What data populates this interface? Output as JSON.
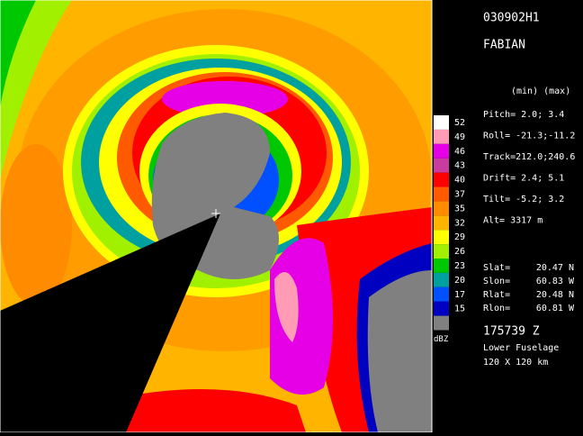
{
  "header": {
    "flight": "030902H1",
    "storm": "FABIAN"
  },
  "stats": {
    "heading": "(min) (max)",
    "rows": [
      "Pitch=  2.0;  3.4",
      "Roll= -21.3;-11.2",
      "Track=212.0;240.6",
      "Drift=  2.4;  5.1",
      "Tilt=  -5.2;  3.2",
      "Alt=  3317 m"
    ]
  },
  "position": {
    "rows": [
      {
        "label": "Slat=",
        "value": "20.47 N"
      },
      {
        "label": "Slon=",
        "value": "60.83 W"
      },
      {
        "label": "Rlat=",
        "value": "20.48 N"
      },
      {
        "label": "Rlon=",
        "value": "60.81 W"
      }
    ]
  },
  "footer": {
    "time": "175739 Z",
    "radar": "Lower Fuselage",
    "domain": "120 X 120 km"
  },
  "colorbar": {
    "unit": "dBZ",
    "levels": [
      {
        "label": "52",
        "color": "#ffffff"
      },
      {
        "label": "49",
        "color": "#ff9bb4"
      },
      {
        "label": "46",
        "color": "#e600e6"
      },
      {
        "label": "43",
        "color": "#c83ca0"
      },
      {
        "label": "40",
        "color": "#ff0000"
      },
      {
        "label": "37",
        "color": "#ff5a00"
      },
      {
        "label": "35",
        "color": "#ff8c00"
      },
      {
        "label": "32",
        "color": "#ffb400"
      },
      {
        "label": "29",
        "color": "#ffff00"
      },
      {
        "label": "26",
        "color": "#a0f000"
      },
      {
        "label": "23",
        "color": "#00c800"
      },
      {
        "label": "20",
        "color": "#00a0a0"
      },
      {
        "label": "17",
        "color": "#0050ff"
      },
      {
        "label": "15",
        "color": "#0000c0"
      }
    ]
  }
}
